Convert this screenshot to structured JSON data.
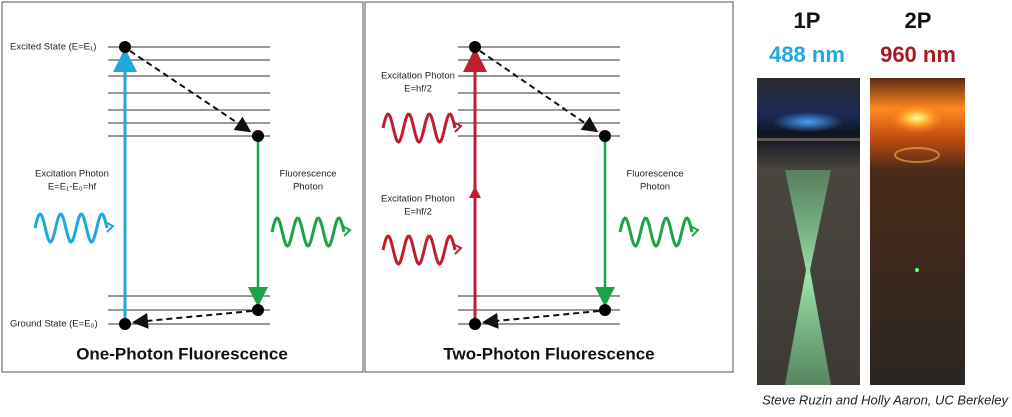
{
  "panels": [
    {
      "title": "One-Photon Fluorescence",
      "excited_label": "Excited State (E=E₁)",
      "ground_label": "Ground State (E=E₀)",
      "excitation": [
        "Excitation Photon",
        "E=E₁-E₀=hf"
      ],
      "fluorescence": [
        "Fluorescence",
        "Photon"
      ]
    },
    {
      "title": "Two-Photon Fluorescence",
      "excitation_upper": [
        "Excitation Photon",
        "E=hf/2"
      ],
      "excitation_lower": [
        "Excitation Photon",
        "E=hf/2"
      ],
      "fluorescence": [
        "Fluorescence",
        "Photon"
      ]
    }
  ],
  "photos": [
    {
      "label": "1P",
      "wavelength": "488 nm"
    },
    {
      "label": "2P",
      "wavelength": "960 nm"
    }
  ],
  "credit": "Steve Ruzin and Holly Aaron, UC Berkeley"
}
